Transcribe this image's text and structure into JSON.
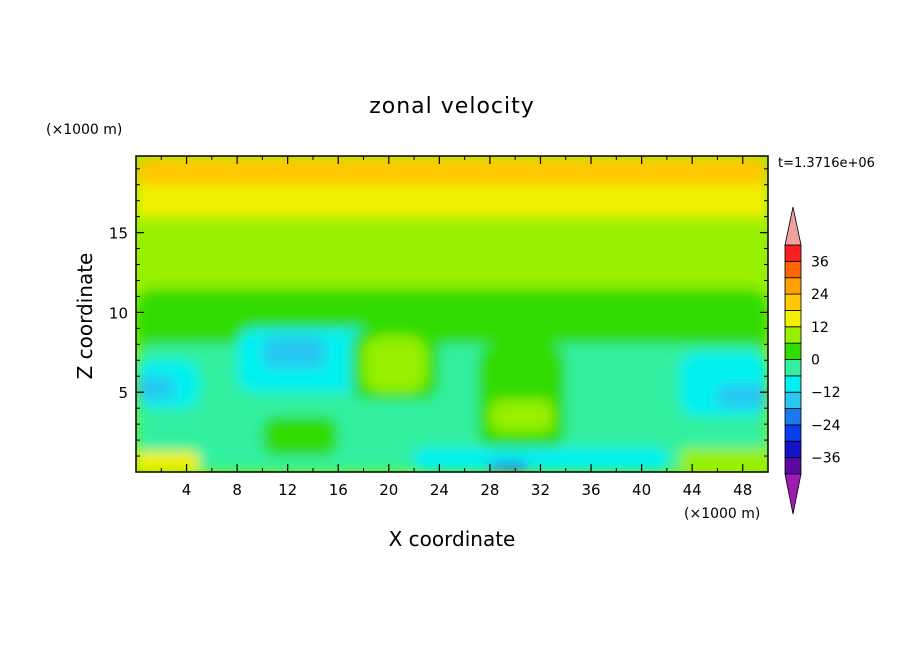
{
  "chart_data": {
    "type": "heatmap",
    "title": "zonal velocity",
    "xlabel": "X coordinate",
    "ylabel": "Z coordinate",
    "x_unit_label": "(×1000 m)",
    "y_unit_label": "(×1000 m)",
    "time_label": "t=1.3716e+06",
    "xlim": [
      0,
      50
    ],
    "ylim": [
      0,
      19.8
    ],
    "x_ticks": [
      "4",
      "8",
      "12",
      "16",
      "20",
      "24",
      "28",
      "32",
      "36",
      "40",
      "44",
      "48"
    ],
    "x_tick_values": [
      4,
      8,
      12,
      16,
      20,
      24,
      28,
      32,
      36,
      40,
      44,
      48
    ],
    "y_ticks": [
      "5",
      "10",
      "15"
    ],
    "y_tick_values": [
      5,
      10,
      15
    ],
    "colorbar": {
      "levels": [
        -42,
        -36,
        -30,
        -24,
        -18,
        -12,
        -6,
        0,
        6,
        12,
        18,
        24,
        30,
        36,
        42
      ],
      "tick_labels": [
        "36",
        "24",
        "12",
        "0",
        "−12",
        "−24",
        "−36"
      ],
      "tick_values": [
        36,
        24,
        12,
        0,
        -12,
        -24,
        -36
      ],
      "colors": [
        "#a01ab4",
        "#5a0aa0",
        "#1414c8",
        "#0a3cf0",
        "#1e78f0",
        "#28c8f0",
        "#00f0f0",
        "#32f0a0",
        "#32dc00",
        "#96f000",
        "#f0f000",
        "#ffc800",
        "#ffa000",
        "#ff6400",
        "#ff1e1e",
        "#f0a0a0"
      ],
      "extend": "both"
    },
    "regions": [
      {
        "level": 12,
        "x0": 0,
        "x1": 50,
        "y0": 15.5,
        "y1": 19.8
      },
      {
        "level": 18,
        "x0": 0,
        "x1": 50,
        "y0": 18.0,
        "y1": 19.8
      },
      {
        "level": 6,
        "x0": 0,
        "x1": 50,
        "y0": 11.0,
        "y1": 16.0
      },
      {
        "level": 0,
        "x0": 0,
        "x1": 50,
        "y0": 7.5,
        "y1": 11.5
      },
      {
        "level": -6,
        "x0": 0,
        "x1": 50,
        "y0": 0,
        "y1": 8.0
      },
      {
        "level": -12,
        "x0": 8,
        "x1": 20,
        "y0": 5.0,
        "y1": 9.0
      },
      {
        "level": -18,
        "x0": 10,
        "x1": 15,
        "y0": 6.5,
        "y1": 8.5
      },
      {
        "level": 0,
        "x0": 17,
        "x1": 24,
        "y0": 4.5,
        "y1": 9.0
      },
      {
        "level": 6,
        "x0": 18,
        "x1": 23,
        "y0": 5.0,
        "y1": 8.5
      },
      {
        "level": 0,
        "x0": 27,
        "x1": 34,
        "y0": 1.5,
        "y1": 8.0
      },
      {
        "level": 6,
        "x0": 28,
        "x1": 33,
        "y0": 2.5,
        "y1": 4.5
      },
      {
        "level": 0,
        "x0": 10,
        "x1": 16,
        "y0": 1.0,
        "y1": 3.5
      },
      {
        "level": -12,
        "x0": 0,
        "x1": 5,
        "y0": 4.0,
        "y1": 7.0
      },
      {
        "level": -18,
        "x0": 0,
        "x1": 3,
        "y0": 4.5,
        "y1": 6.0
      },
      {
        "level": -12,
        "x0": 43,
        "x1": 50,
        "y0": 3.5,
        "y1": 7.5
      },
      {
        "level": -18,
        "x0": 46,
        "x1": 50,
        "y0": 4.0,
        "y1": 5.5
      },
      {
        "level": -12,
        "x0": 22,
        "x1": 42,
        "y0": 0,
        "y1": 1.5
      },
      {
        "level": -24,
        "x0": 28,
        "x1": 31,
        "y0": 0,
        "y1": 0.6
      },
      {
        "level": 12,
        "x0": 0,
        "x1": 5,
        "y0": 0,
        "y1": 1.3
      },
      {
        "level": 6,
        "x0": 43,
        "x1": 50,
        "y0": 0,
        "y1": 1.5
      }
    ]
  }
}
